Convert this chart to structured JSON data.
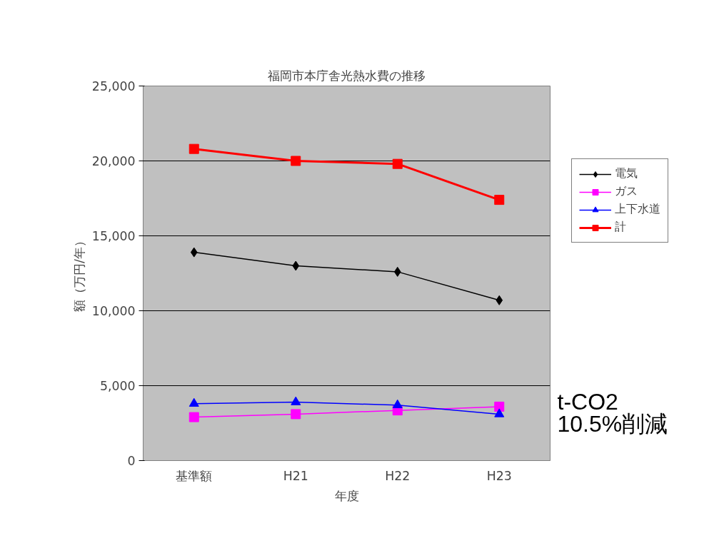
{
  "chart_data": {
    "type": "line",
    "title": "福岡市本庁舎光熱水費の推移",
    "xlabel": "年度",
    "ylabel": "額（万円/年）",
    "categories": [
      "基準額",
      "H21",
      "H22",
      "H23"
    ],
    "ylim": [
      0,
      25000
    ],
    "yticks": [
      {
        "value": 0,
        "label": "0"
      },
      {
        "value": 5000,
        "label": "5,000"
      },
      {
        "value": 10000,
        "label": "10,000"
      },
      {
        "value": 15000,
        "label": "15,000"
      },
      {
        "value": 20000,
        "label": "20,000"
      },
      {
        "value": 25000,
        "label": "25,000"
      }
    ],
    "grid": "y",
    "legend": "right",
    "series": [
      {
        "name": "電気",
        "color": "#000000",
        "marker": "diamond",
        "values": [
          13900,
          13000,
          12600,
          10700
        ]
      },
      {
        "name": "ガス",
        "color": "#ff00ff",
        "marker": "square",
        "values": [
          2900,
          3100,
          3350,
          3600
        ]
      },
      {
        "name": "上下水道",
        "color": "#0000ff",
        "marker": "triangle",
        "values": [
          3800,
          3900,
          3700,
          3100
        ]
      },
      {
        "name": "計",
        "color": "#ff0000",
        "marker": "square",
        "values": [
          20800,
          20000,
          19800,
          17400
        ]
      }
    ],
    "annotations": [
      "t-CO2",
      "10.5%削減"
    ]
  }
}
